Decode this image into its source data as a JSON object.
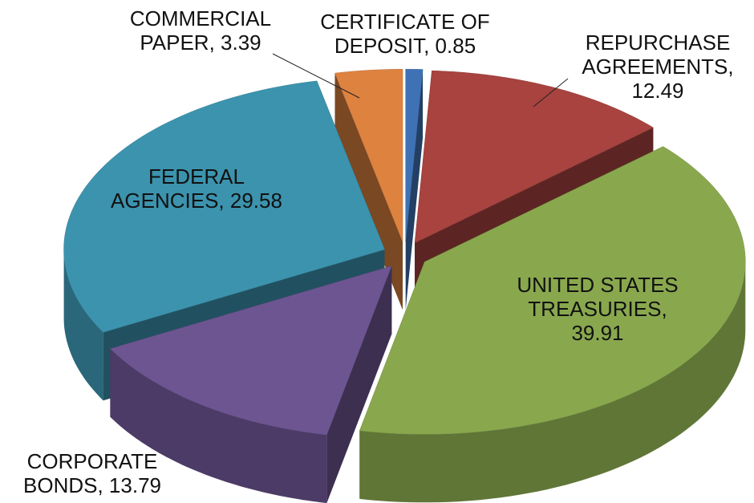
{
  "chart_data": {
    "type": "pie",
    "categories": [
      "CERTIFICATE OF DEPOSIT",
      "REPURCHASE AGREEMENTS",
      "UNITED STATES TREASURIES",
      "CORPORATE BONDS",
      "FEDERAL AGENCIES",
      "COMMERCIAL PAPER"
    ],
    "values": [
      0.85,
      12.49,
      39.91,
      13.79,
      29.58,
      3.39
    ],
    "colors": [
      "#3f72b5",
      "#a8433f",
      "#89a84e",
      "#6d5592",
      "#3c93ae",
      "#de8240"
    ],
    "label_separator": ", "
  }
}
